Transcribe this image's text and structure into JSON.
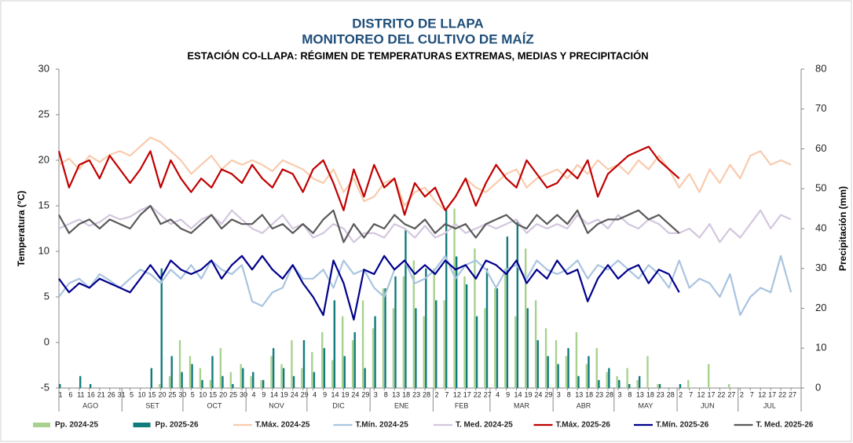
{
  "chart_data": {
    "type": "combo",
    "title": "DISTRITO DE LLAPA",
    "subtitle": "MONITOREO DEL CULTIVO DE MAÍZ",
    "station_title": "ESTACIÓN CO-LLAPA: RÉGIMEN DE TEMPERATURAS EXTREMAS, MEDIAS Y PRECIPITACIÓN",
    "y_label": "Temperatura (°C)",
    "y2_label": "Precipitación (mm)",
    "xlim": [
      0,
      365
    ],
    "ylim": [
      -5,
      30
    ],
    "yticks": [
      -5,
      0,
      5,
      10,
      15,
      20,
      25,
      30
    ],
    "y2lim": [
      0,
      80
    ],
    "y2ticks": [
      0,
      10,
      20,
      30,
      40,
      50,
      60,
      70,
      80
    ],
    "grid": false,
    "legend": "bottom",
    "xticks": [
      {
        "value": 0,
        "label": "1"
      },
      {
        "value": 5,
        "label": "6"
      },
      {
        "value": 10,
        "label": "11"
      },
      {
        "value": 15,
        "label": "16"
      },
      {
        "value": 20,
        "label": "21"
      },
      {
        "value": 25,
        "label": "26"
      },
      {
        "value": 30,
        "label": "31"
      },
      {
        "value": 35,
        "label": "5"
      },
      {
        "value": 40,
        "label": "10"
      },
      {
        "value": 45,
        "label": "15"
      },
      {
        "value": 50,
        "label": "20"
      },
      {
        "value": 55,
        "label": "25"
      },
      {
        "value": 60,
        "label": "30"
      },
      {
        "value": 65,
        "label": "5"
      },
      {
        "value": 70,
        "label": "10"
      },
      {
        "value": 75,
        "label": "15"
      },
      {
        "value": 80,
        "label": "20"
      },
      {
        "value": 85,
        "label": "25"
      },
      {
        "value": 90,
        "label": "30"
      },
      {
        "value": 95,
        "label": "4"
      },
      {
        "value": 100,
        "label": "9"
      },
      {
        "value": 105,
        "label": "14"
      },
      {
        "value": 110,
        "label": "19"
      },
      {
        "value": 115,
        "label": "24"
      },
      {
        "value": 120,
        "label": "29"
      },
      {
        "value": 125,
        "label": "4"
      },
      {
        "value": 130,
        "label": "9"
      },
      {
        "value": 135,
        "label": "14"
      },
      {
        "value": 140,
        "label": "19"
      },
      {
        "value": 145,
        "label": "24"
      },
      {
        "value": 150,
        "label": "29"
      },
      {
        "value": 155,
        "label": "3"
      },
      {
        "value": 160,
        "label": "8"
      },
      {
        "value": 165,
        "label": "13"
      },
      {
        "value": 170,
        "label": "18"
      },
      {
        "value": 175,
        "label": "23"
      },
      {
        "value": 180,
        "label": "28"
      },
      {
        "value": 185,
        "label": "2"
      },
      {
        "value": 190,
        "label": "7"
      },
      {
        "value": 195,
        "label": "12"
      },
      {
        "value": 200,
        "label": "17"
      },
      {
        "value": 205,
        "label": "22"
      },
      {
        "value": 210,
        "label": "27"
      },
      {
        "value": 215,
        "label": "4"
      },
      {
        "value": 220,
        "label": "9"
      },
      {
        "value": 225,
        "label": "14"
      },
      {
        "value": 230,
        "label": "19"
      },
      {
        "value": 235,
        "label": "24"
      },
      {
        "value": 240,
        "label": "29"
      },
      {
        "value": 245,
        "label": "3"
      },
      {
        "value": 250,
        "label": "8"
      },
      {
        "value": 255,
        "label": "13"
      },
      {
        "value": 260,
        "label": "18"
      },
      {
        "value": 265,
        "label": "23"
      },
      {
        "value": 270,
        "label": "28"
      },
      {
        "value": 275,
        "label": "3"
      },
      {
        "value": 280,
        "label": "8"
      },
      {
        "value": 285,
        "label": "13"
      },
      {
        "value": 290,
        "label": "18"
      },
      {
        "value": 295,
        "label": "23"
      },
      {
        "value": 300,
        "label": "28"
      },
      {
        "value": 305,
        "label": "2"
      },
      {
        "value": 310,
        "label": "7"
      },
      {
        "value": 315,
        "label": "12"
      },
      {
        "value": 320,
        "label": "17"
      },
      {
        "value": 325,
        "label": "22"
      },
      {
        "value": 330,
        "label": "27"
      },
      {
        "value": 335,
        "label": "2"
      },
      {
        "value": 340,
        "label": "7"
      },
      {
        "value": 345,
        "label": "12"
      },
      {
        "value": 350,
        "label": "17"
      },
      {
        "value": 355,
        "label": "22"
      },
      {
        "value": 360,
        "label": "27"
      }
    ],
    "month_ticks": [
      {
        "value": 0,
        "label": "AGO"
      },
      {
        "value": 31,
        "label": "SET"
      },
      {
        "value": 61,
        "label": "OCT"
      },
      {
        "value": 92,
        "label": "NOV"
      },
      {
        "value": 122,
        "label": "DIC"
      },
      {
        "value": 153,
        "label": "ENE"
      },
      {
        "value": 184,
        "label": "FEB"
      },
      {
        "value": 212,
        "label": "MAR"
      },
      {
        "value": 243,
        "label": "ABR"
      },
      {
        "value": 273,
        "label": "MAY"
      },
      {
        "value": 304,
        "label": "JUN"
      },
      {
        "value": 334,
        "label": "JUL"
      }
    ],
    "x": [
      0,
      5,
      10,
      15,
      20,
      25,
      30,
      35,
      40,
      45,
      50,
      55,
      60,
      65,
      70,
      75,
      80,
      85,
      90,
      95,
      100,
      105,
      110,
      115,
      120,
      125,
      130,
      135,
      140,
      145,
      150,
      155,
      160,
      165,
      170,
      175,
      180,
      185,
      190,
      195,
      200,
      205,
      210,
      215,
      220,
      225,
      230,
      235,
      240,
      245,
      250,
      255,
      260,
      265,
      270,
      275,
      280,
      285,
      290,
      295,
      300,
      305,
      310,
      315,
      320,
      325,
      330,
      335,
      340,
      345,
      350,
      355,
      360
    ],
    "series": [
      {
        "name": "Pp. 2024-25",
        "type": "bar",
        "axis": "y2",
        "color": "#a9d18e",
        "values": [
          0,
          0,
          0,
          0,
          0,
          0,
          0,
          0,
          0,
          0,
          1,
          3,
          12,
          8,
          5,
          2,
          10,
          4,
          6,
          3,
          2,
          8,
          6,
          12,
          5,
          9,
          14,
          7,
          18,
          12,
          22,
          15,
          25,
          20,
          28,
          32,
          18,
          30,
          22,
          45,
          28,
          35,
          20,
          25,
          30,
          18,
          35,
          22,
          15,
          12,
          8,
          14,
          6,
          10,
          4,
          3,
          5,
          2,
          8,
          1,
          0,
          0,
          2,
          0,
          6,
          0,
          1,
          0,
          0,
          0,
          0,
          0,
          0
        ]
      },
      {
        "name": "Pp. 2025-26",
        "type": "bar",
        "axis": "y2",
        "color": "#127b7b",
        "values": [
          1,
          0,
          3,
          1,
          0,
          0,
          0,
          0,
          0,
          5,
          30,
          8,
          4,
          6,
          2,
          8,
          3,
          1,
          5,
          4,
          2,
          10,
          5,
          3,
          12,
          4,
          10,
          22,
          8,
          14,
          5,
          18,
          25,
          28,
          40,
          20,
          30,
          22,
          45,
          33,
          26,
          18,
          30,
          25,
          38,
          42,
          20,
          12,
          8,
          6,
          10,
          3,
          8,
          2,
          5,
          2,
          1,
          3,
          0,
          1,
          0,
          1,
          null,
          null,
          null,
          null,
          null,
          null,
          null,
          null,
          null,
          null,
          null
        ]
      },
      {
        "name": "T.Máx. 2024-25",
        "type": "line",
        "color": "#f8cbad",
        "values": [
          19.5,
          20.2,
          19,
          20.5,
          19.8,
          20.6,
          21,
          20.5,
          21.5,
          22.5,
          22,
          21,
          20,
          18.5,
          19.5,
          20.5,
          19,
          20,
          19.5,
          20,
          19.5,
          18.8,
          20,
          19.5,
          19,
          18,
          17.5,
          19,
          16.5,
          18,
          15.5,
          16,
          17.5,
          18,
          15,
          16.5,
          17,
          15.5,
          14.5,
          16,
          18,
          17,
          16.5,
          17.5,
          18.5,
          19,
          17,
          18,
          18.5,
          19,
          18,
          19.5,
          18.5,
          20,
          19,
          19.5,
          18.5,
          20,
          19,
          20.5,
          19,
          17,
          18.5,
          16.5,
          19,
          17.5,
          19.5,
          18,
          20.5,
          21,
          19.5,
          20,
          19.5
        ]
      },
      {
        "name": "T.Mín. 2024-25",
        "type": "line",
        "color": "#a9c4e0",
        "values": [
          5,
          6.5,
          7,
          6,
          7.5,
          6.8,
          6,
          7,
          8,
          7.5,
          6.5,
          8,
          7,
          8.5,
          7,
          9,
          8,
          7.5,
          8.5,
          4.5,
          4,
          5.5,
          6,
          8.5,
          7,
          7,
          8,
          6,
          9,
          7.5,
          8,
          6,
          5,
          8,
          9,
          6.5,
          7,
          8,
          9.5,
          7,
          8.5,
          9,
          8,
          6,
          8,
          8.5,
          7,
          9,
          8,
          7.5,
          8,
          9,
          7,
          8.5,
          8,
          9,
          8,
          7,
          8.5,
          7.5,
          6,
          9,
          6,
          7,
          6.5,
          5,
          7.5,
          3,
          5,
          6,
          5.5,
          9.5,
          5.5
        ]
      },
      {
        "name": "T. Med. 2024-25",
        "type": "line",
        "color": "#d3c6df",
        "values": [
          12.5,
          13,
          13.5,
          12.8,
          13.2,
          14,
          13.5,
          13.8,
          14.5,
          15,
          14,
          13,
          13.5,
          12.5,
          13.5,
          14,
          13,
          14.5,
          13.5,
          12.5,
          12,
          13,
          14,
          12.5,
          13,
          11.5,
          12,
          13,
          12.5,
          11,
          12,
          12,
          11.5,
          13,
          12.5,
          11.5,
          12.8,
          11.5,
          12,
          13,
          12,
          12.5,
          13,
          12.5,
          13,
          13.5,
          12,
          13,
          12.5,
          13,
          12.5,
          14,
          13,
          13.5,
          12.5,
          14,
          13,
          12.5,
          13.5,
          13,
          12,
          12,
          12.5,
          11.5,
          13,
          11,
          12.5,
          11.5,
          13,
          14.5,
          12.5,
          14,
          13.5
        ]
      },
      {
        "name": "T.Máx. 2025-26",
        "type": "line",
        "color": "#c00000",
        "values": [
          21,
          17,
          19.5,
          20,
          18,
          20.5,
          19,
          17.5,
          19,
          21,
          17,
          20,
          18,
          16.5,
          18,
          17,
          19,
          18.5,
          17.5,
          19.5,
          18,
          17,
          19,
          18.5,
          16.5,
          19,
          20,
          17.5,
          14.5,
          19,
          16,
          19.5,
          17,
          18,
          14,
          17.5,
          16,
          17,
          14.5,
          16,
          18,
          15,
          17.5,
          19.5,
          18,
          17,
          20,
          18.5,
          17,
          17.5,
          19,
          18,
          20,
          16,
          18.5,
          19.5,
          20.5,
          21,
          21.5,
          20,
          19,
          18,
          null,
          null,
          null,
          null,
          null,
          null,
          null,
          null,
          null,
          null,
          null
        ]
      },
      {
        "name": "T.Mín. 2025-26",
        "type": "line",
        "color": "#00008b",
        "values": [
          7,
          5.5,
          6.5,
          6,
          7,
          6.5,
          6,
          5.5,
          7,
          8.5,
          7,
          9,
          8,
          7.5,
          8,
          9,
          7,
          8.5,
          9.5,
          8,
          9.5,
          8,
          7,
          8.5,
          6.5,
          5,
          3,
          9,
          6.5,
          2.5,
          8,
          7.5,
          9.5,
          8,
          9,
          7.5,
          8.5,
          7.5,
          9,
          8,
          8.5,
          7,
          9,
          8.5,
          7.5,
          9,
          6.5,
          8,
          7,
          9,
          7.5,
          8,
          4.5,
          7,
          8.5,
          7,
          8,
          8.5,
          6.5,
          8,
          7.5,
          5.5,
          null,
          null,
          null,
          null,
          null,
          null,
          null,
          null,
          null,
          null,
          null
        ]
      },
      {
        "name": "T. Med. 2025-26",
        "type": "line",
        "color": "#595959",
        "values": [
          14,
          12,
          13,
          13.5,
          12.5,
          13.5,
          13,
          12.5,
          14,
          15,
          13,
          13.5,
          12.5,
          12,
          13,
          14,
          12.5,
          13.5,
          13,
          13,
          14,
          12.5,
          13,
          12,
          13,
          12,
          13.5,
          14.5,
          11,
          13,
          11.5,
          13,
          12.5,
          14,
          13,
          12.5,
          13.5,
          12,
          13,
          12.5,
          13,
          11.5,
          13,
          13.5,
          14,
          13,
          12.5,
          14,
          13,
          14,
          13,
          14.5,
          12,
          13,
          13.5,
          13.5,
          14,
          14.5,
          13.5,
          14,
          13,
          12,
          null,
          null,
          null,
          null,
          null,
          null,
          null,
          null,
          null,
          null,
          null
        ]
      }
    ]
  }
}
